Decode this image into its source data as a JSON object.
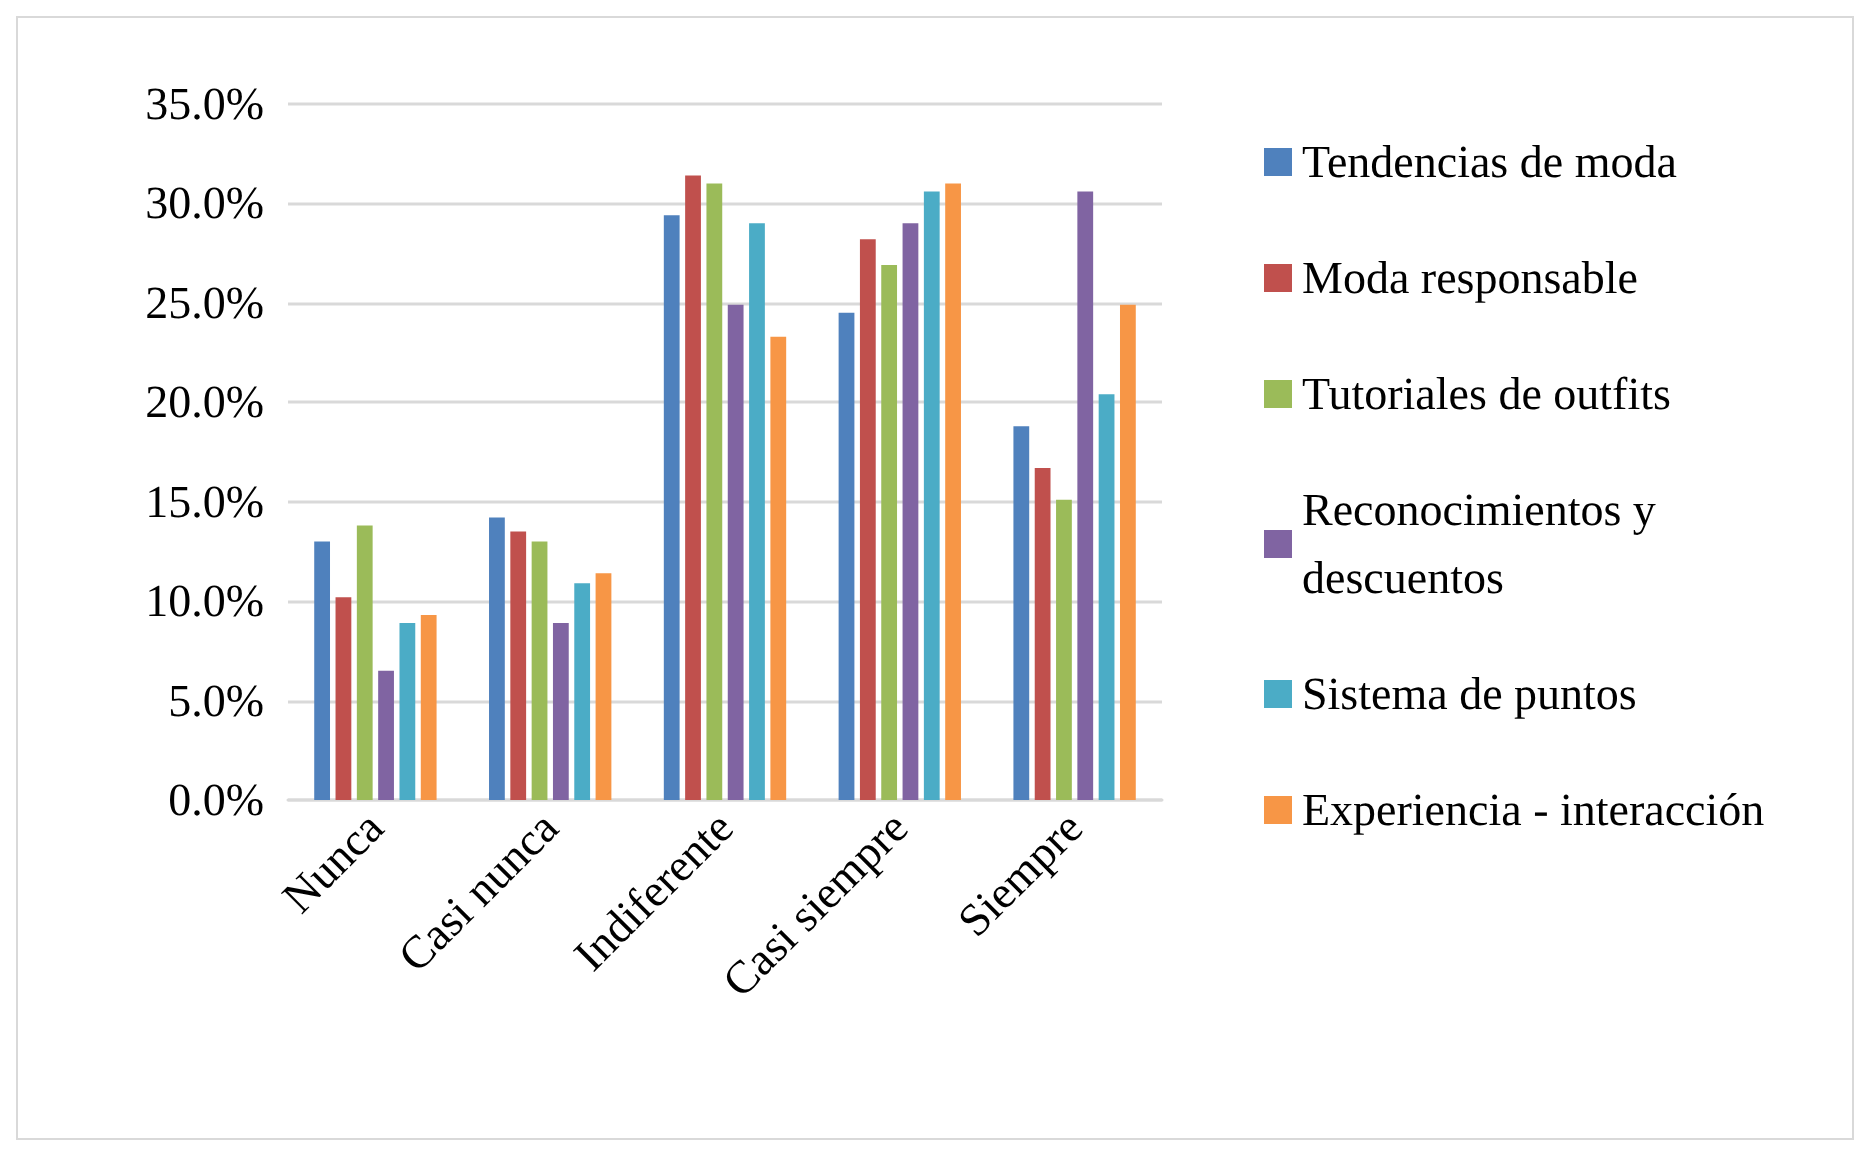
{
  "chart_data": {
    "type": "bar",
    "categories": [
      "Nunca",
      "Casi nunca",
      "Indiferente",
      "Casi siempre",
      "Siempre"
    ],
    "series": [
      {
        "name": "Tendencias de moda",
        "color": "#4f81bd",
        "values": [
          13.0,
          14.2,
          29.4,
          24.5,
          18.8
        ]
      },
      {
        "name": "Moda responsable",
        "color": "#c0504d",
        "values": [
          10.2,
          13.5,
          31.4,
          28.2,
          16.7
        ]
      },
      {
        "name": "Tutoriales de outfits",
        "color": "#9bbb59",
        "values": [
          13.8,
          13.0,
          31.0,
          26.9,
          15.1
        ]
      },
      {
        "name": "Reconocimientos y descuentos",
        "color": "#8064a2",
        "values": [
          6.5,
          8.9,
          24.9,
          29.0,
          30.6
        ]
      },
      {
        "name": "Sistema de puntos",
        "color": "#4bacc6",
        "values": [
          8.9,
          10.9,
          29.0,
          30.6,
          20.4
        ]
      },
      {
        "name": "Experiencia - interacción",
        "color": "#f79646",
        "values": [
          9.3,
          11.4,
          23.3,
          31.0,
          24.9
        ]
      }
    ],
    "ylim": [
      0,
      35
    ],
    "yticks": [
      {
        "value": 0,
        "label": "0.0%"
      },
      {
        "value": 5,
        "label": "5.0%"
      },
      {
        "value": 10,
        "label": "10.0%"
      },
      {
        "value": 15,
        "label": "15.0%"
      },
      {
        "value": 20,
        "label": "20.0%"
      },
      {
        "value": 25,
        "label": "25.0%"
      },
      {
        "value": 30,
        "label": "30.0%"
      },
      {
        "value": 35,
        "label": "35.0%"
      }
    ],
    "grid": "y",
    "legend": "right"
  }
}
